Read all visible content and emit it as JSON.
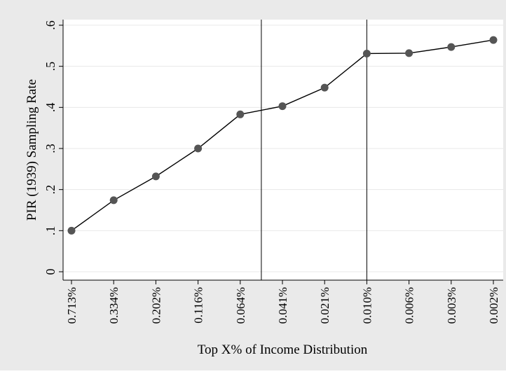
{
  "chart_data": {
    "type": "line",
    "xlabel": "Top X% of Income Distribution",
    "ylabel": "PIR (1939) Sampling Rate",
    "categories": [
      "0.713%",
      "0.334%",
      "0.202%",
      "0.116%",
      "0.064%",
      "0.041%",
      "0.021%",
      "0.010%",
      "0.006%",
      "0.003%",
      "0.002%"
    ],
    "series": [
      {
        "values": [
          0.1,
          0.174,
          0.232,
          0.3,
          0.383,
          0.403,
          0.448,
          0.531,
          0.532,
          0.547,
          0.564
        ]
      }
    ],
    "yticks": [
      {
        "value": 0,
        "label": "0"
      },
      {
        "value": 0.1,
        "label": ".1"
      },
      {
        "value": 0.2,
        "label": ".2"
      },
      {
        "value": 0.3,
        "label": ".3"
      },
      {
        "value": 0.4,
        "label": ".4"
      },
      {
        "value": 0.5,
        "label": ".5"
      },
      {
        "value": 0.6,
        "label": ".6"
      }
    ],
    "ylim": [
      0,
      0.6
    ],
    "vertical_lines_between": [
      [
        4,
        5
      ],
      [
        7,
        7
      ]
    ],
    "grid": "horizontal",
    "colors": {
      "background_outer": "#eaeaea",
      "plot_background": "#ffffff",
      "line": "#000000",
      "marker": "#555555",
      "grid": "#e8e8e8"
    }
  }
}
